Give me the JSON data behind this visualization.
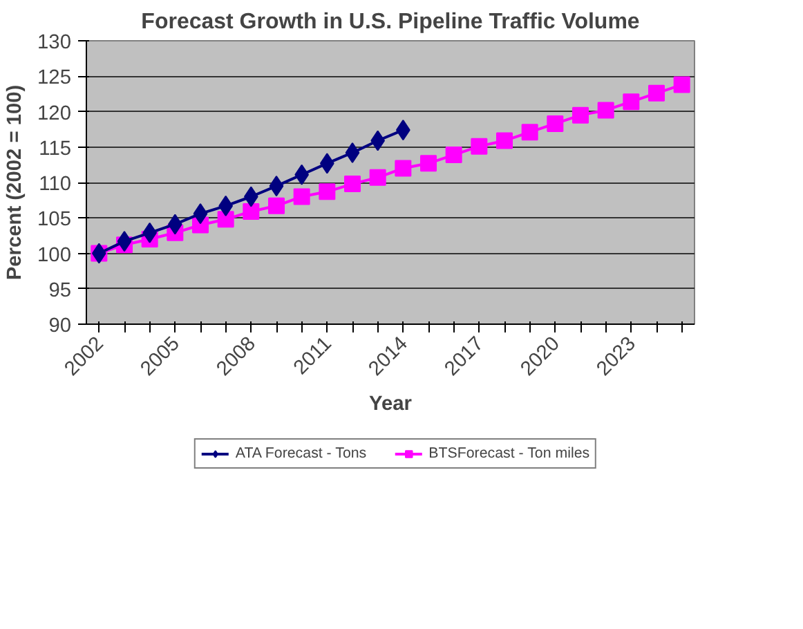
{
  "chart_data": {
    "type": "line",
    "title": "Forecast Growth in U.S. Pipeline Traffic Volume",
    "xlabel": "Year",
    "ylabel": "Percent (2002 = 100)",
    "categories": [
      "2002",
      null,
      null,
      "2005",
      null,
      null,
      "2008",
      null,
      null,
      "2011",
      null,
      null,
      "2014",
      null,
      null,
      "2017",
      null,
      null,
      "2020",
      null,
      null,
      "2023",
      null,
      null
    ],
    "series": [
      {
        "name": "ATA Forecast - Tons",
        "color": "#000080",
        "marker": "diamond",
        "values": [
          100,
          101.7,
          102.9,
          104.1,
          105.6,
          106.7,
          108,
          109.5,
          111.1,
          112.7,
          114.2,
          115.9,
          117.4,
          null,
          null,
          null,
          null,
          null,
          null,
          null,
          null,
          null,
          null,
          null
        ]
      },
      {
        "name": "BTSForecast - Ton miles",
        "color": "#ff00ff",
        "marker": "square",
        "values": [
          100,
          101.2,
          102,
          102.9,
          104,
          104.8,
          105.9,
          106.7,
          108,
          108.7,
          109.8,
          110.7,
          112,
          112.7,
          113.9,
          115.1,
          115.9,
          117.1,
          118.3,
          119.5,
          120.2,
          121.4,
          122.6,
          123.8
        ]
      }
    ],
    "ylim": [
      90,
      130
    ],
    "yticks": [
      90,
      95,
      100,
      105,
      110,
      115,
      120,
      125,
      130
    ],
    "grid": "y",
    "legend": "bottom",
    "line_style": "solid"
  }
}
